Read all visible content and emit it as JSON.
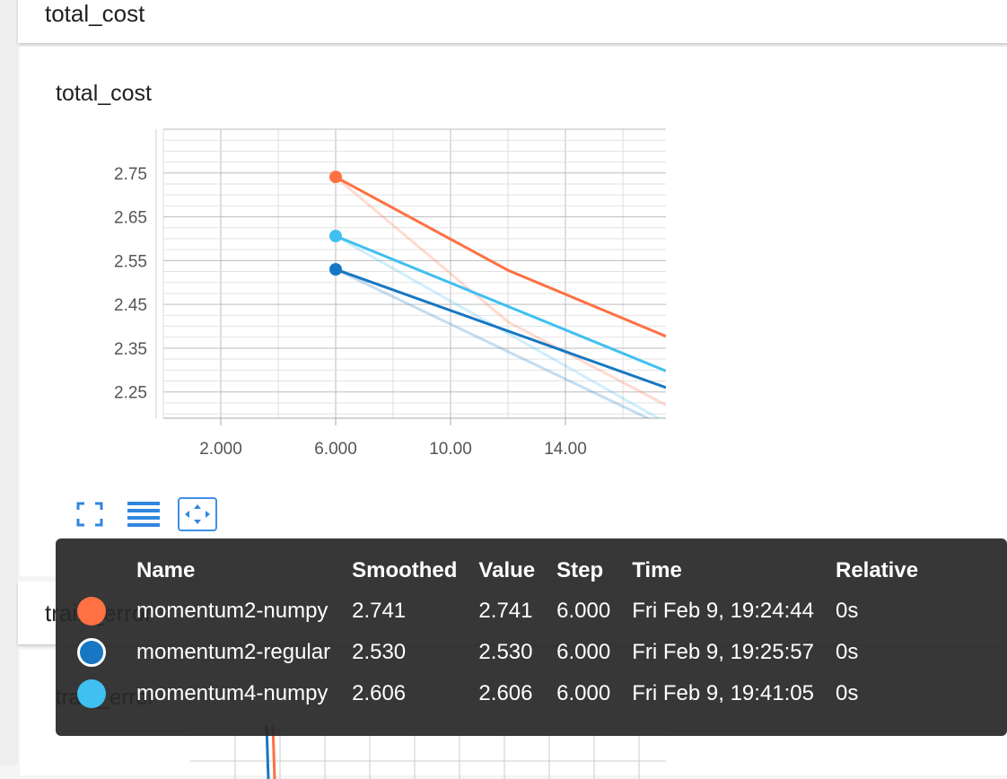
{
  "section_title": "total_cost",
  "panel_title": "total_cost",
  "second_section_title": "train_error",
  "second_panel_title": "train_error",
  "toolbar": {
    "fit_icon": "fullscreen-icon",
    "list_icon": "list-icon",
    "zoom_icon": "fit-domain-icon"
  },
  "chart_data": {
    "type": "line",
    "title": "total_cost",
    "x_ticks": [
      "2.000",
      "6.000",
      "10.00",
      "14.00"
    ],
    "y_ticks": [
      "2.25",
      "2.35",
      "2.45",
      "2.55",
      "2.65",
      "2.75"
    ],
    "xlim": [
      0,
      17.5
    ],
    "ylim": [
      2.19,
      2.85
    ],
    "grid": true,
    "series": [
      {
        "name": "momentum2-numpy",
        "color": "#ff7043",
        "x": [
          6,
          12,
          17.5
        ],
        "smoothed": [
          2.741,
          2.528,
          2.377
        ],
        "raw": [
          2.741,
          2.41,
          2.22
        ]
      },
      {
        "name": "momentum4-numpy",
        "color": "#40c0f0",
        "x": [
          6,
          17.5
        ],
        "smoothed": [
          2.606,
          2.298
        ],
        "raw": [
          2.606,
          2.18
        ]
      },
      {
        "name": "momentum2-regular",
        "color": "#1777c2",
        "x": [
          6,
          17.5
        ],
        "smoothed": [
          2.53,
          2.26
        ],
        "raw": [
          2.53,
          2.17
        ]
      }
    ]
  },
  "tooltip": {
    "headers": [
      "Name",
      "Smoothed",
      "Value",
      "Step",
      "Time",
      "Relative"
    ],
    "rows": [
      {
        "name": "momentum2-numpy",
        "color": "#ff7043",
        "smoothed": "2.741",
        "value": "2.741",
        "step": "6.000",
        "time": "Fri Feb 9, 19:24:44",
        "relative": "0s",
        "swatch_style": "filled"
      },
      {
        "name": "momentum2-regular",
        "color": "#1777c2",
        "smoothed": "2.530",
        "value": "2.530",
        "step": "6.000",
        "time": "Fri Feb 9, 19:25:57",
        "relative": "0s",
        "swatch_style": "outlined"
      },
      {
        "name": "momentum4-numpy",
        "color": "#40c0f0",
        "smoothed": "2.606",
        "value": "2.606",
        "step": "6.000",
        "time": "Fri Feb 9, 19:41:05",
        "relative": "0s",
        "swatch_style": "filled"
      }
    ]
  }
}
